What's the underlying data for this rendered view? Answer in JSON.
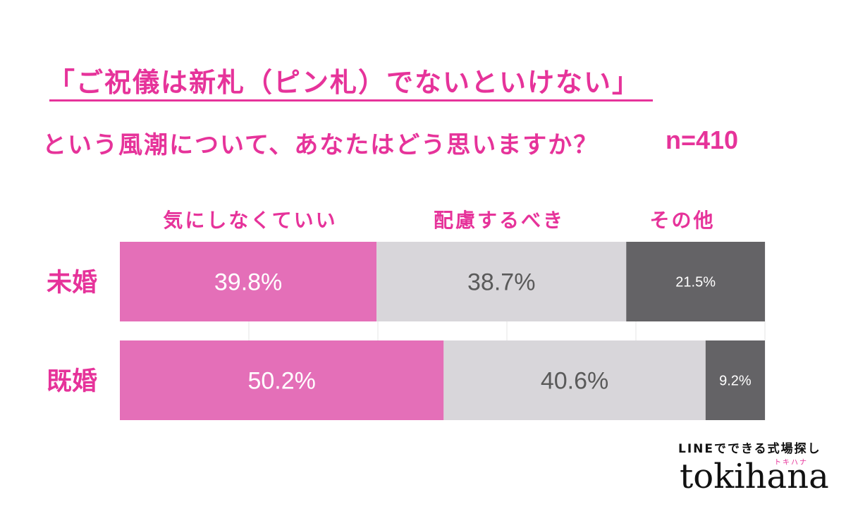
{
  "title_line1": "「ご祝儀は新札（ピン札）でないといけない」",
  "title_line2": "という風潮について、あなたはどう思いますか？",
  "sample_size": "n=410",
  "colors": {
    "accent": "#e6339a",
    "series1": "#e46fb8",
    "series2": "#d8d6da",
    "series3": "#646366",
    "label_on_light": "#5a5a5a",
    "label_on_dark": "#ffffff"
  },
  "chart_data": {
    "type": "bar",
    "orientation": "horizontal",
    "stacked": true,
    "categories": [
      "未婚",
      "既婚"
    ],
    "series": [
      {
        "name": "気にしなくていい",
        "values": [
          39.8,
          50.2
        ],
        "labels": [
          "39.8%",
          "50.2%"
        ]
      },
      {
        "name": "配慮するべき",
        "values": [
          38.7,
          40.6
        ],
        "labels": [
          "38.7%",
          "40.6%"
        ]
      },
      {
        "name": "その他",
        "values": [
          21.5,
          9.2
        ],
        "labels": [
          "21.5%",
          "9.2%"
        ]
      }
    ],
    "xlim": [
      0,
      100
    ],
    "grid": true,
    "legend": "top"
  },
  "logo": {
    "tagline": "LINEでできる式場探し",
    "kana": "トキハナ",
    "wordmark": "tokihana"
  }
}
